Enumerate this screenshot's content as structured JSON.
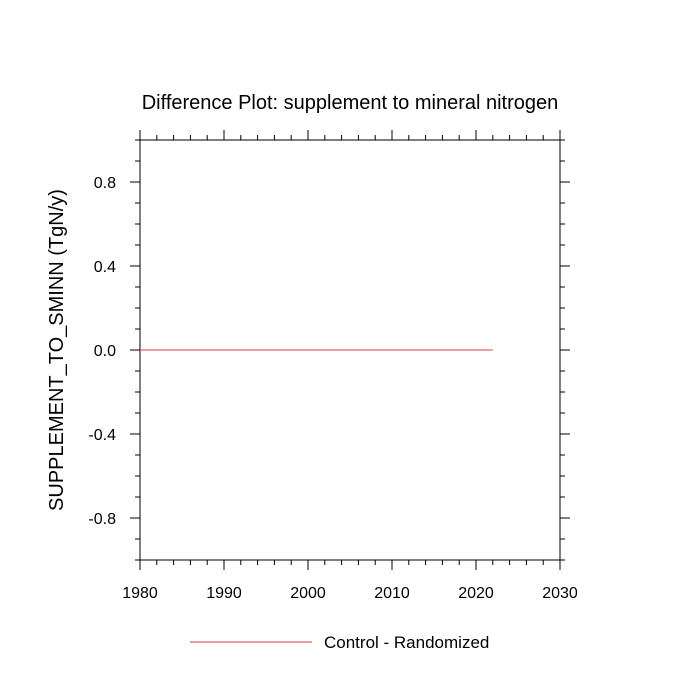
{
  "chart_data": {
    "type": "line",
    "title": "Difference Plot: supplement to mineral nitrogen",
    "xlabel": "",
    "ylabel": "SUPPLEMENT_TO_SMINN  (TgN/y)",
    "xlim": [
      1980,
      2030
    ],
    "ylim": [
      -1.0,
      1.0
    ],
    "x_ticks": [
      1980,
      1990,
      2000,
      2010,
      2020,
      2030
    ],
    "y_ticks": [
      -0.8,
      -0.4,
      0.0,
      0.4,
      0.8
    ],
    "y_tick_labels": [
      "-0.8",
      "-0.4",
      "0.0",
      "0.4",
      "0.8"
    ],
    "grid": false,
    "legend_position": "bottom-center",
    "series": [
      {
        "name": "Control - Randomized",
        "color": "#e06666",
        "x": [
          1980,
          2022
        ],
        "y": [
          0.0,
          0.0
        ]
      }
    ]
  }
}
